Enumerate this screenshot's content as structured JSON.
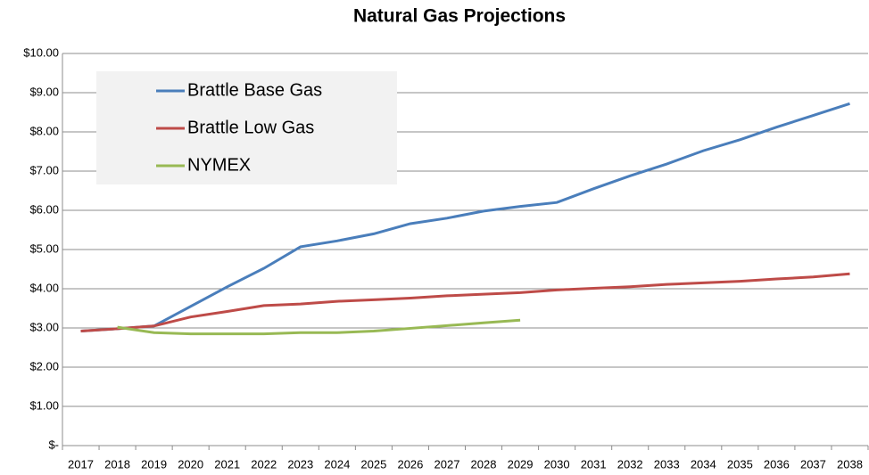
{
  "chart_data": {
    "type": "line",
    "title": "Natural Gas Projections",
    "categories": [
      "2017",
      "2018",
      "2019",
      "2020",
      "2021",
      "2022",
      "2023",
      "2024",
      "2025",
      "2026",
      "2027",
      "2028",
      "2029",
      "2030",
      "2031",
      "2032",
      "2033",
      "2034",
      "2035",
      "2036",
      "2037",
      "2038"
    ],
    "series": [
      {
        "name": "Brattle Base Gas",
        "color": "#4a7ebb",
        "values": [
          2.92,
          2.98,
          3.05,
          3.55,
          4.05,
          4.52,
          5.07,
          5.22,
          5.4,
          5.66,
          5.8,
          5.98,
          6.1,
          6.2,
          6.55,
          6.88,
          7.18,
          7.52,
          7.8,
          8.12,
          8.42,
          8.72
        ]
      },
      {
        "name": "Brattle Low Gas",
        "color": "#be4b48",
        "values": [
          2.92,
          2.98,
          3.05,
          3.28,
          3.42,
          3.57,
          3.61,
          3.68,
          3.72,
          3.76,
          3.82,
          3.86,
          3.9,
          3.97,
          4.01,
          4.05,
          4.11,
          4.15,
          4.19,
          4.25,
          4.3,
          4.38
        ]
      },
      {
        "name": "NYMEX",
        "color": "#98b954",
        "values": [
          null,
          3.02,
          2.88,
          2.85,
          2.85,
          2.85,
          2.88,
          2.88,
          2.92,
          2.99,
          3.06,
          3.13,
          3.2,
          null,
          null,
          null,
          null,
          null,
          null,
          null,
          null,
          null
        ]
      }
    ],
    "ylim": [
      0,
      10
    ],
    "yticks": [
      {
        "value": 0,
        "label": "$-"
      },
      {
        "value": 1,
        "label": "$1.00"
      },
      {
        "value": 2,
        "label": "$2.00"
      },
      {
        "value": 3,
        "label": "$3.00"
      },
      {
        "value": 4,
        "label": "$4.00"
      },
      {
        "value": 5,
        "label": "$5.00"
      },
      {
        "value": 6,
        "label": "$6.00"
      },
      {
        "value": 7,
        "label": "$7.00"
      },
      {
        "value": 8,
        "label": "$8.00"
      },
      {
        "value": 9,
        "label": "$9.00"
      },
      {
        "value": 10,
        "label": "$10.00"
      }
    ],
    "grid": true,
    "legend": "top-left"
  }
}
